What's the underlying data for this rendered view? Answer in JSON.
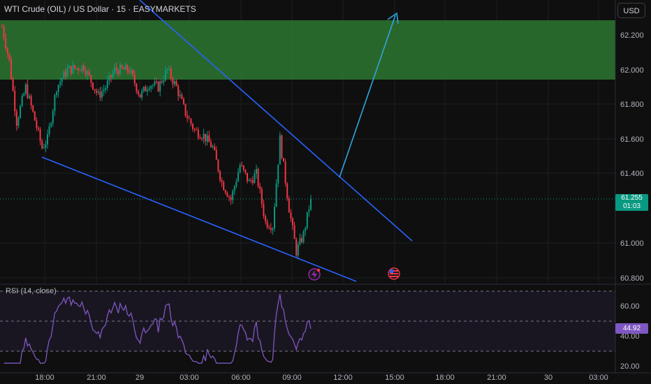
{
  "header": {
    "symbol_title": "WTI Crude (OIL) / US Dollar · 15 · EASYMARKETS",
    "currency_button": "USD"
  },
  "price_axis": {
    "labels": [
      "62.200",
      "62.000",
      "61.800",
      "61.600",
      "61.400",
      "61.000",
      "60.800"
    ],
    "current_price": "61.255",
    "countdown": "01:03"
  },
  "rsi": {
    "label": "RSI (14, close)",
    "axis_labels": [
      "60.00",
      "40.00",
      "20.00"
    ],
    "current_value": "44.92",
    "upper_band": 70,
    "lower_band": 30
  },
  "time_axis": {
    "labels": [
      "18:00",
      "21:00",
      "29",
      "03:00",
      "06:00",
      "09:00",
      "12:00",
      "15:00",
      "18:00",
      "21:00",
      "30",
      "03:00"
    ]
  },
  "colors": {
    "background": "#0f0f0f",
    "up_candle": "#089981",
    "down_candle": "#f23645",
    "trendline": "#2962ff",
    "projection_arrow": "#2ea6e0",
    "zone": "#2e7d32",
    "rsi_line": "#7e57c2"
  },
  "chart_data": {
    "type": "candlestick",
    "price_range": [
      60.8,
      62.3
    ],
    "resistance_zone": [
      61.95,
      62.29
    ],
    "last_price": 61.255,
    "rsi_last": 44.92
  }
}
